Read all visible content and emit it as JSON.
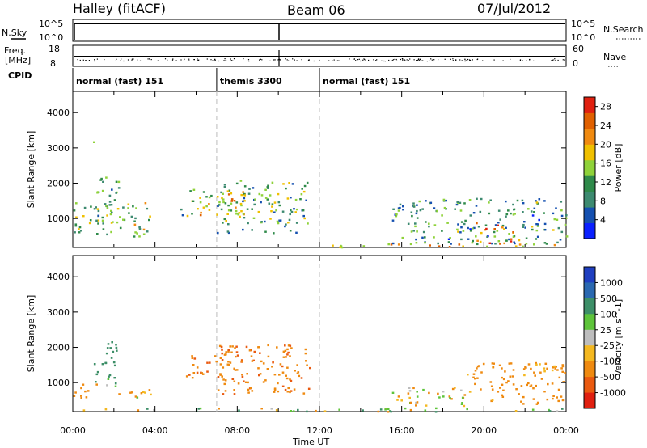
{
  "header": {
    "station": "Halley (fitACF)",
    "beam": "Beam 06",
    "date": "07/Jul/2012"
  },
  "strip_labels": {
    "nsky": "N.Sky",
    "freq_line1": "Freq.",
    "freq_line2": "[MHz]",
    "cpid": "CPID",
    "nsearch": "N.Search",
    "nave": "Nave",
    "nsky_ticks": [
      "10^5",
      "10^0"
    ],
    "freq_ticks": [
      "18",
      "8"
    ],
    "nave_ticks": [
      "60",
      "0"
    ]
  },
  "cpid_segments": [
    {
      "label": "normal (fast) 151",
      "start_h": 0,
      "end_h": 7
    },
    {
      "label": "themis 3300",
      "start_h": 7,
      "end_h": 12
    },
    {
      "label": "normal (fast) 151",
      "start_h": 12,
      "end_h": 24
    }
  ],
  "colors": {
    "power": [
      "#0a20ff",
      "#1550b0",
      "#3d8a70",
      "#2f8a4a",
      "#8fd23a",
      "#f0c000",
      "#f08a10",
      "#e06000",
      "#e02010"
    ],
    "velocity": [
      "#1f3fc0",
      "#2a68b0",
      "#3d8f68",
      "#5ec43a",
      "#bdbdbd",
      "#f4b820",
      "#ef8a10",
      "#ea5a10",
      "#e02010"
    ]
  },
  "chart_data": [
    {
      "type": "heatmap",
      "title": "",
      "xlabel": "Time UT",
      "ylabel": "Slant Range [km]",
      "xlim": [
        0,
        24
      ],
      "ylim": [
        180,
        4600
      ],
      "x_tick_labels": [
        "00:00",
        "04:00",
        "08:00",
        "12:00",
        "16:00",
        "20:00",
        "00:00"
      ],
      "y_ticks": [
        1000,
        2000,
        3000,
        4000
      ],
      "colorbar": {
        "label": "Power [dB]",
        "ticks": [
          "4",
          "8",
          "12",
          "16",
          "20",
          "24",
          "28"
        ],
        "range": [
          0,
          30
        ]
      },
      "clusters": [
        {
          "t": [
            0.0,
            3.8
          ],
          "r": [
            500,
            1500
          ],
          "value": 14
        },
        {
          "t": [
            1.0,
            2.2
          ],
          "r": [
            900,
            2200
          ],
          "value": 10
        },
        {
          "t": [
            0.8,
            1.0
          ],
          "r": [
            3100,
            3450
          ],
          "value": 12
        },
        {
          "t": [
            5.0,
            5.4
          ],
          "r": [
            1100,
            1400
          ],
          "value": 8
        },
        {
          "t": [
            5.5,
            8.5
          ],
          "r": [
            1100,
            1900
          ],
          "value": 18
        },
        {
          "t": [
            7.0,
            11.5
          ],
          "r": [
            600,
            2100
          ],
          "value": 12
        },
        {
          "t": [
            12.0,
            24.0
          ],
          "r": [
            200,
            300
          ],
          "value": 20
        },
        {
          "t": [
            15.5,
            24.0
          ],
          "r": [
            300,
            1600
          ],
          "value": 10
        },
        {
          "t": [
            19.5,
            21.5
          ],
          "r": [
            300,
            900
          ],
          "value": 22
        }
      ]
    },
    {
      "type": "heatmap",
      "title": "",
      "xlabel": "Time UT",
      "ylabel": "Slant Range [km]",
      "xlim": [
        0,
        24
      ],
      "ylim": [
        180,
        4600
      ],
      "x_tick_labels": [
        "00:00",
        "04:00",
        "08:00",
        "12:00",
        "16:00",
        "20:00",
        "00:00"
      ],
      "y_ticks": [
        1000,
        2000,
        3000,
        4000
      ],
      "colorbar": {
        "label": "Velocity [m s^-1]",
        "ticks": [
          "1000",
          "500",
          "100",
          "25",
          "-25",
          "-100",
          "-500",
          "-1000"
        ]
      },
      "clusters": [
        {
          "t": [
            0.0,
            1.2
          ],
          "r": [
            500,
            1000
          ],
          "value": -300
        },
        {
          "t": [
            1.0,
            2.2
          ],
          "r": [
            900,
            2200
          ],
          "value": 200
        },
        {
          "t": [
            2.0,
            4.0
          ],
          "r": [
            600,
            900
          ],
          "value": -50
        },
        {
          "t": [
            5.5,
            8.5
          ],
          "r": [
            1100,
            1900
          ],
          "value": -450
        },
        {
          "t": [
            7.0,
            11.5
          ],
          "r": [
            700,
            2100
          ],
          "value": -400
        },
        {
          "t": [
            15.5,
            19.0
          ],
          "r": [
            300,
            900
          ],
          "value": -100
        },
        {
          "t": [
            19.0,
            24.0
          ],
          "r": [
            400,
            1600
          ],
          "value": -250
        },
        {
          "t": [
            0.0,
            24.0
          ],
          "r": [
            200,
            300
          ],
          "value": 50
        }
      ]
    }
  ]
}
